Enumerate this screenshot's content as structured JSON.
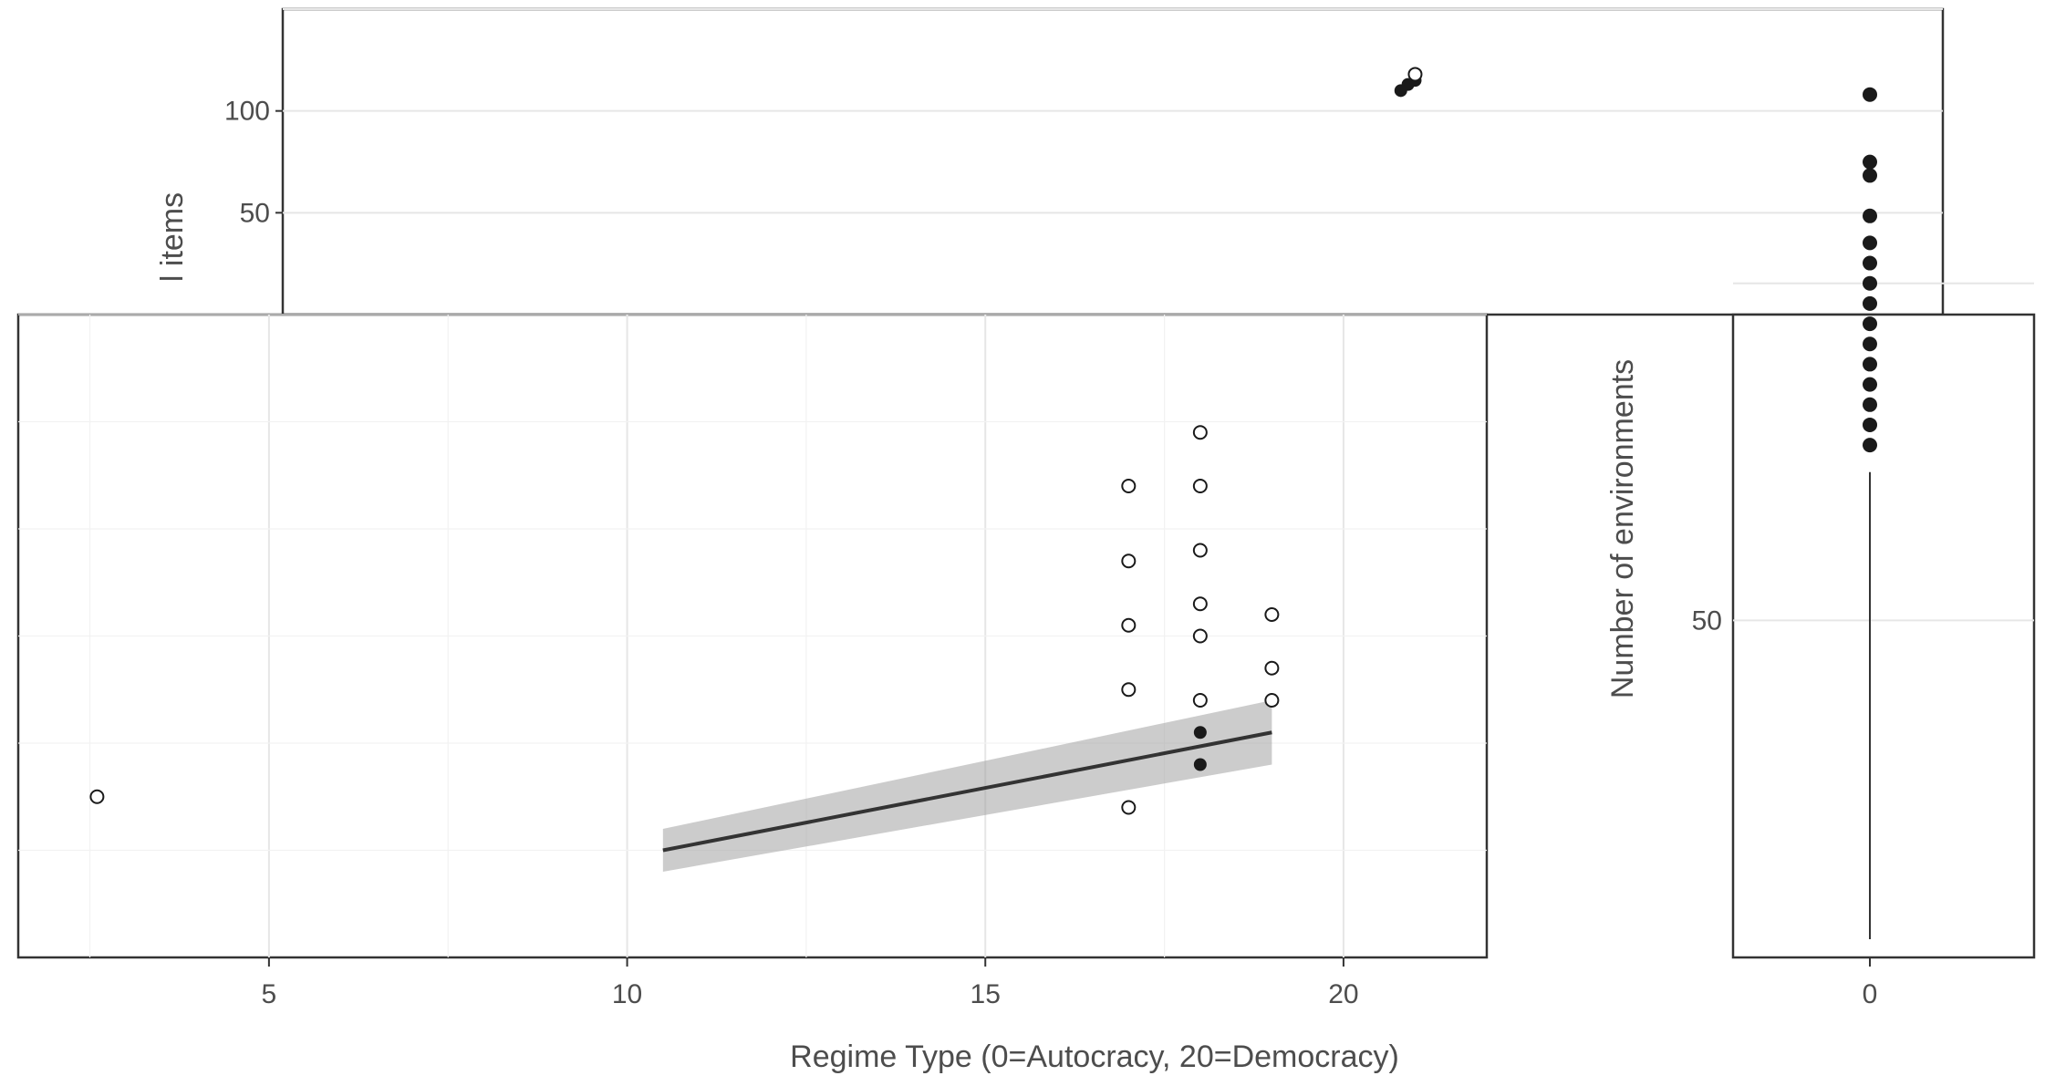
{
  "chart_data": [
    {
      "type": "scatter",
      "panel": "main-upper",
      "xlabel": "",
      "ylabel": "l items",
      "yticks": [
        50,
        100
      ],
      "ylim": [
        0,
        150
      ],
      "grid": true,
      "points": [
        {
          "x": 20.9,
          "y": 113,
          "shape": "filled"
        },
        {
          "x": 21.0,
          "y": 115,
          "shape": "filled"
        },
        {
          "x": 21.0,
          "y": 118,
          "shape": "open"
        },
        {
          "x": 20.8,
          "y": 110,
          "shape": "filled"
        }
      ]
    },
    {
      "type": "scatter",
      "panel": "main-lower",
      "xlabel": "Regime Type (0=Autocracy, 20=Democracy)",
      "ylabel": "",
      "xticks": [
        "5",
        "10",
        "15",
        "20"
      ],
      "xlim": [
        1.5,
        22
      ],
      "grid": true,
      "points": [
        {
          "x": 17,
          "y": 44,
          "shape": "open"
        },
        {
          "x": 17,
          "y": 37,
          "shape": "open"
        },
        {
          "x": 17,
          "y": 31,
          "shape": "open"
        },
        {
          "x": 17,
          "y": 25,
          "shape": "open"
        },
        {
          "x": 17,
          "y": 14,
          "shape": "open"
        },
        {
          "x": 18,
          "y": 49,
          "shape": "open"
        },
        {
          "x": 18,
          "y": 44,
          "shape": "open"
        },
        {
          "x": 18,
          "y": 38,
          "shape": "open"
        },
        {
          "x": 18,
          "y": 33,
          "shape": "open"
        },
        {
          "x": 18,
          "y": 30,
          "shape": "open"
        },
        {
          "x": 18,
          "y": 24,
          "shape": "open"
        },
        {
          "x": 18,
          "y": 21,
          "shape": "filled"
        },
        {
          "x": 18,
          "y": 18,
          "shape": "filled"
        },
        {
          "x": 19,
          "y": 32,
          "shape": "open"
        },
        {
          "x": 19,
          "y": 27,
          "shape": "open"
        },
        {
          "x": 19,
          "y": 24,
          "shape": "open"
        },
        {
          "x": 2.6,
          "y": 15,
          "shape": "open"
        }
      ],
      "trend": [
        {
          "x": 10.5,
          "y": 10
        },
        {
          "x": 19,
          "y": 21
        }
      ]
    },
    {
      "type": "scatter",
      "panel": "right",
      "xlabel": "",
      "ylabel": "Number of environments",
      "xticks": [
        "0"
      ],
      "yticks": [
        "50"
      ],
      "grid": true,
      "points": [
        {
          "x": 0,
          "y": 128,
          "shape": "filled"
        },
        {
          "x": 0,
          "y": 118,
          "shape": "filled"
        },
        {
          "x": 0,
          "y": 116,
          "shape": "filled"
        },
        {
          "x": 0,
          "y": 110,
          "shape": "filled"
        },
        {
          "x": 0,
          "y": 106,
          "shape": "filled"
        },
        {
          "x": 0,
          "y": 103,
          "shape": "filled"
        },
        {
          "x": 0,
          "y": 100,
          "shape": "filled"
        },
        {
          "x": 0,
          "y": 97,
          "shape": "filled"
        },
        {
          "x": 0,
          "y": 94,
          "shape": "filled"
        },
        {
          "x": 0,
          "y": 91,
          "shape": "filled"
        },
        {
          "x": 0,
          "y": 88,
          "shape": "filled"
        },
        {
          "x": 0,
          "y": 85,
          "shape": "filled"
        },
        {
          "x": 0,
          "y": 82,
          "shape": "filled"
        },
        {
          "x": 0,
          "y": 79,
          "shape": "filled"
        },
        {
          "x": 0,
          "y": 76,
          "shape": "filled"
        }
      ]
    }
  ],
  "colors": {
    "panel_border": "#333333",
    "grid": "#e6e6e6",
    "ribbon": "#999999",
    "text": "#4d4d4d"
  }
}
